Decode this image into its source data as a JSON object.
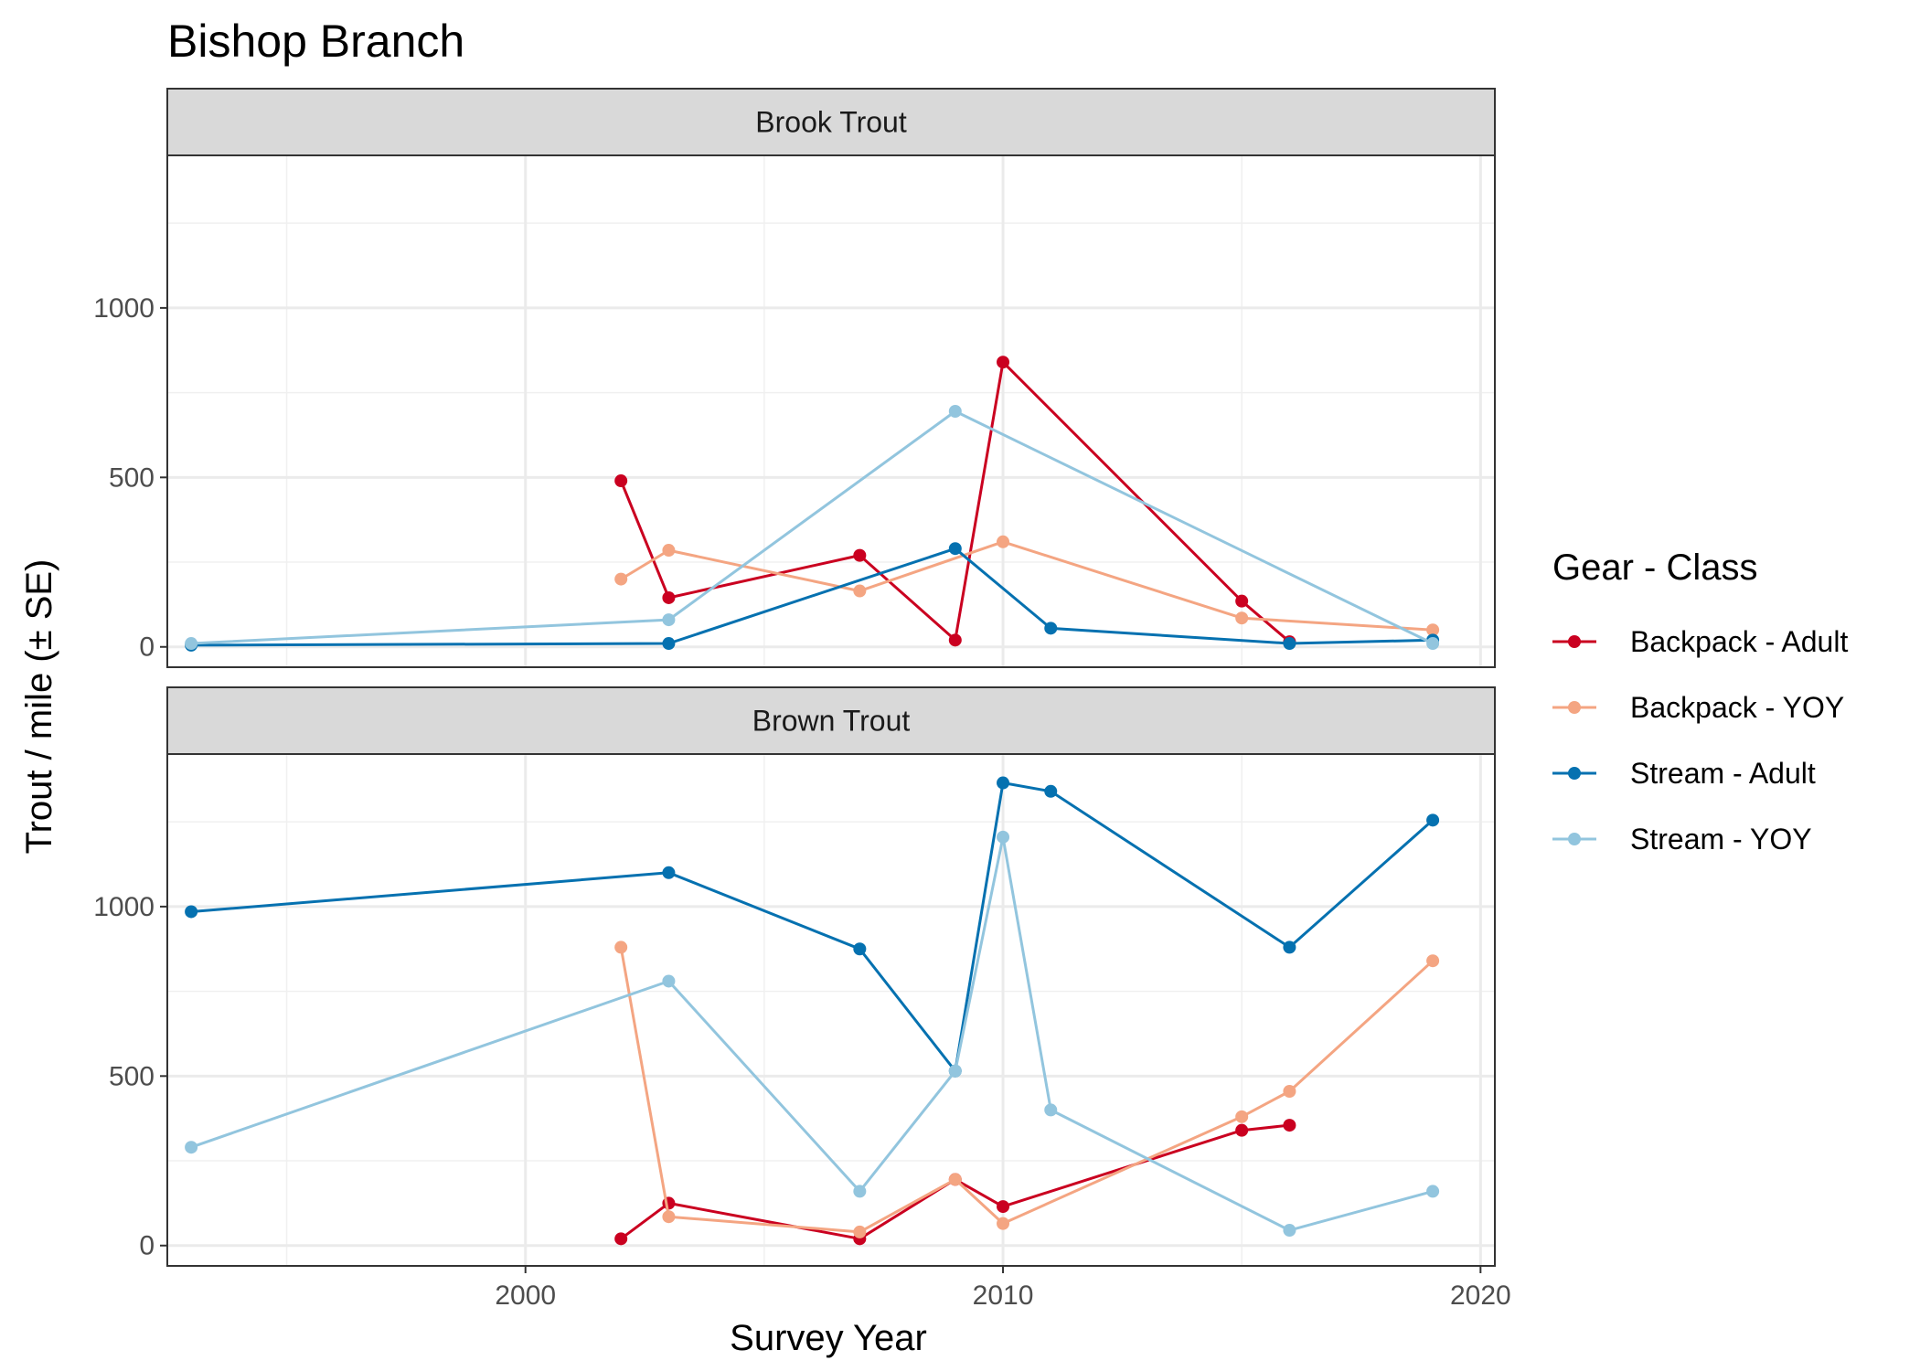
{
  "chart_data": {
    "type": "line",
    "title": "Bishop Branch",
    "xlabel": "Survey Year",
    "ylabel": "Trout / mile (± SE)",
    "xlim": [
      1992.5,
      2020.3
    ],
    "ylim": [
      -60,
      1450
    ],
    "x_ticks": [
      2000,
      2010,
      2020
    ],
    "y_ticks": [
      0,
      500,
      1000
    ],
    "grid": true,
    "legend": {
      "title": "Gear - Class",
      "position": "right"
    },
    "series_styles": [
      {
        "name": "Backpack - Adult",
        "color": "#CA0020"
      },
      {
        "name": "Backpack - YOY",
        "color": "#F4A582"
      },
      {
        "name": "Stream - Adult",
        "color": "#0571B0"
      },
      {
        "name": "Stream - YOY",
        "color": "#92C5DE"
      }
    ],
    "panels": [
      {
        "label": "Brook Trout",
        "series": [
          {
            "name": "Backpack - Adult",
            "x": [
              2002,
              2003,
              2007,
              2009,
              2010,
              2015,
              2016
            ],
            "y": [
              490,
              145,
              270,
              20,
              840,
              135,
              15
            ]
          },
          {
            "name": "Backpack - YOY",
            "x": [
              2002,
              2003,
              2007,
              2010,
              2015,
              2019
            ],
            "y": [
              200,
              285,
              165,
              310,
              85,
              50
            ]
          },
          {
            "name": "Stream - Adult",
            "x": [
              1993,
              2003,
              2009,
              2011,
              2016,
              2019
            ],
            "y": [
              5,
              10,
              290,
              55,
              10,
              20
            ]
          },
          {
            "name": "Stream - YOY",
            "x": [
              1993,
              2003,
              2009,
              2019
            ],
            "y": [
              10,
              80,
              695,
              10
            ]
          }
        ]
      },
      {
        "label": "Brown Trout",
        "series": [
          {
            "name": "Backpack - Adult",
            "x": [
              2002,
              2003,
              2007,
              2009,
              2010,
              2015,
              2016
            ],
            "y": [
              20,
              125,
              20,
              195,
              115,
              340,
              355
            ]
          },
          {
            "name": "Backpack - YOY",
            "x": [
              2002,
              2003,
              2007,
              2009,
              2010,
              2015,
              2016,
              2019
            ],
            "y": [
              880,
              85,
              40,
              195,
              65,
              380,
              455,
              840
            ]
          },
          {
            "name": "Stream - Adult",
            "x": [
              1993,
              2003,
              2007,
              2009,
              2010,
              2011,
              2016,
              2019
            ],
            "y": [
              985,
              1100,
              875,
              515,
              1365,
              1340,
              880,
              1255
            ]
          },
          {
            "name": "Stream - YOY",
            "x": [
              1993,
              2003,
              2007,
              2009,
              2010,
              2011,
              2016,
              2019
            ],
            "y": [
              290,
              780,
              160,
              515,
              1205,
              400,
              45,
              160
            ]
          }
        ]
      }
    ]
  }
}
